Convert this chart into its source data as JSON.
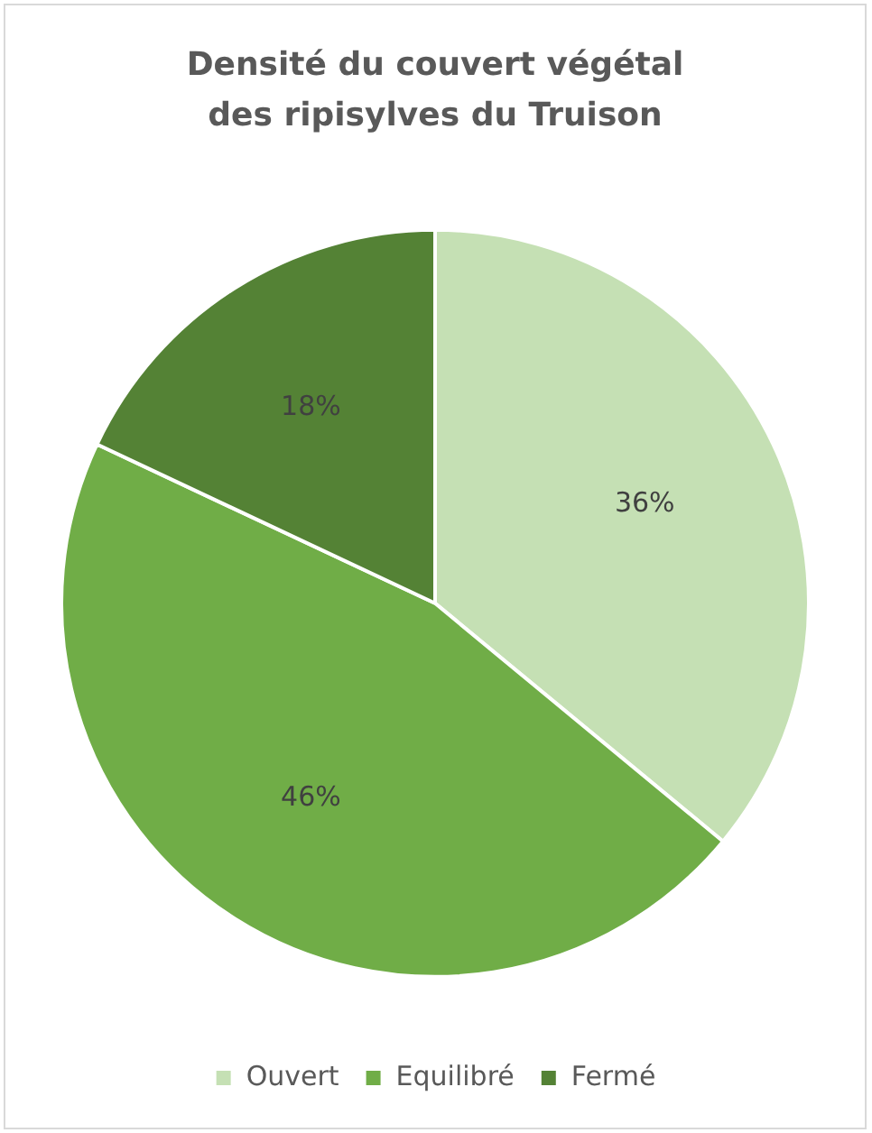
{
  "chart_data": {
    "type": "pie",
    "title": "Densité du couvert végétal\ndes ripisylves du Truison",
    "categories": [
      "Ouvert",
      "Equilibré",
      "Fermé"
    ],
    "values": [
      36,
      46,
      18
    ],
    "colors": [
      "#c5e0b4",
      "#70ad47",
      "#548235"
    ],
    "value_labels": [
      "36%",
      "46%",
      "18%"
    ],
    "legend": "bottom"
  }
}
